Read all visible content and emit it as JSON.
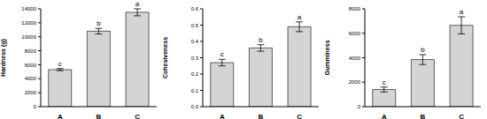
{
  "chart_data": [
    {
      "type": "bar",
      "y_label": "Hardness (g)",
      "categories": [
        "A",
        "B",
        "C"
      ],
      "values": [
        5300,
        10800,
        13500
      ],
      "errors": [
        150,
        400,
        500
      ],
      "annotations": [
        "c",
        "b",
        "a"
      ],
      "color": "#d4d4d4",
      "ylim": [
        0,
        14000
      ],
      "yticks": [
        0,
        2000,
        4000,
        6000,
        8000,
        10000,
        12000,
        14000
      ],
      "grid": false
    },
    {
      "type": "bar",
      "y_label": "Cohesiveness",
      "categories": [
        "A",
        "B",
        "C"
      ],
      "values": [
        0.27,
        0.36,
        0.49
      ],
      "errors": [
        0.02,
        0.02,
        0.03
      ],
      "annotations": [
        "c",
        "b",
        "a"
      ],
      "color": "#d4d4d4",
      "ylim": [
        0,
        0.6
      ],
      "yticks": [
        {
          "value": 0,
          "label": "0.0"
        },
        0.1,
        0.2,
        0.3,
        0.4,
        0.5,
        0.6
      ],
      "grid": false
    },
    {
      "type": "bar",
      "y_label": "Gumminess",
      "categories": [
        "A",
        "B",
        "C"
      ],
      "values": [
        1400,
        3850,
        6650
      ],
      "errors": [
        200,
        400,
        700
      ],
      "annotations": [
        "c",
        "b",
        "a"
      ],
      "color": "#d4d4d4",
      "ylim": [
        0,
        8000
      ],
      "yticks": [
        0,
        2000,
        4000,
        6000,
        8000
      ],
      "grid": false
    }
  ]
}
